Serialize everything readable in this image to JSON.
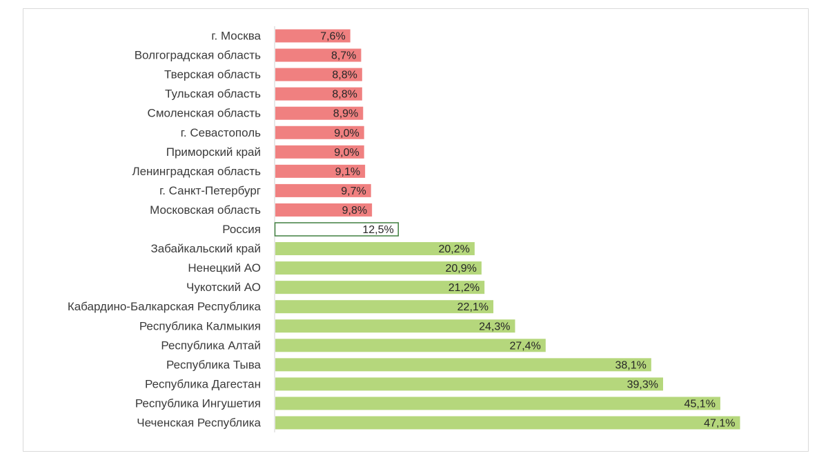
{
  "chart_data": {
    "type": "bar",
    "orientation": "horizontal",
    "title": "",
    "xlabel": "",
    "ylabel": "",
    "xlim": [
      0,
      50
    ],
    "grid": false,
    "legend": "none",
    "colors": {
      "low": "#f08080",
      "reference": "#ffffff",
      "reference_border": "#3f7f3f",
      "high": "#b5d77c"
    },
    "categories": [
      "г. Москва",
      "Волгоградская область",
      "Тверская область",
      "Тульская область",
      "Смоленская область",
      "г. Севастополь",
      "Приморский край",
      "Ленинградская область",
      "г. Санкт-Петербург",
      "Московская область",
      "Россия",
      "Забайкальский край",
      "Ненецкий АО",
      "Чукотский АО",
      "Кабардино-Балкарская Республика",
      "Республика Калмыкия",
      "Республика Алтай",
      "Республика Тыва",
      "Республика Дагестан",
      "Республика Ингушетия",
      "Чеченская Республика"
    ],
    "values": [
      7.6,
      8.7,
      8.8,
      8.8,
      8.9,
      9.0,
      9.0,
      9.1,
      9.7,
      9.8,
      12.5,
      20.2,
      20.9,
      21.2,
      22.1,
      24.3,
      27.4,
      38.1,
      39.3,
      45.1,
      47.1
    ],
    "value_labels": [
      "7,6%",
      "8,7%",
      "8,8%",
      "8,8%",
      "8,9%",
      "9,0%",
      "9,0%",
      "9,1%",
      "9,7%",
      "9,8%",
      "12,5%",
      "20,2%",
      "20,9%",
      "21,2%",
      "22,1%",
      "24,3%",
      "27,4%",
      "38,1%",
      "39,3%",
      "45,1%",
      "47,1%"
    ],
    "groups": [
      "low",
      "low",
      "low",
      "low",
      "low",
      "low",
      "low",
      "low",
      "low",
      "low",
      "reference",
      "high",
      "high",
      "high",
      "high",
      "high",
      "high",
      "high",
      "high",
      "high",
      "high"
    ]
  }
}
